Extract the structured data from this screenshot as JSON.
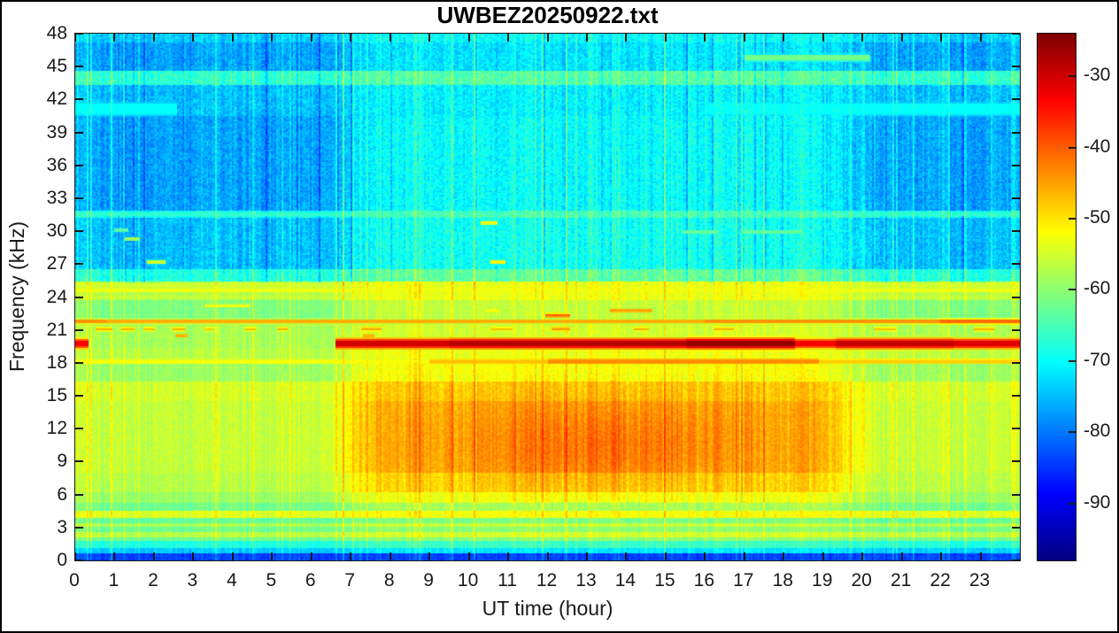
{
  "chart_data": {
    "type": "heatmap",
    "subtype": "spectrogram",
    "title": "UWBEZ20250922.txt",
    "xlabel": "UT time (hour)",
    "ylabel": "Frequency (kHz)",
    "xlim": [
      0,
      24
    ],
    "ylim": [
      0,
      48
    ],
    "x_ticks": [
      0,
      1,
      2,
      3,
      4,
      5,
      6,
      7,
      8,
      9,
      10,
      11,
      12,
      13,
      14,
      15,
      16,
      17,
      18,
      19,
      20,
      21,
      22,
      23
    ],
    "y_ticks": [
      0,
      3,
      6,
      9,
      12,
      15,
      18,
      21,
      24,
      27,
      30,
      33,
      36,
      39,
      42,
      45,
      48
    ],
    "grid_on": false,
    "legend": null,
    "colorbar": {
      "ticks": [
        -30,
        -40,
        -50,
        -60,
        -70,
        -80,
        -90
      ],
      "cmin": -98,
      "cmax": -24,
      "colormap": "jet",
      "position": "right"
    },
    "colors": {
      "background": "#ffffff",
      "title": "#000000",
      "text": "#1a1a1a",
      "axis": "#1a1a1a"
    },
    "model": {
      "grid": {
        "nx": 512,
        "ny": 300
      },
      "day": {
        "rise": [
          5.8,
          8.2
        ],
        "set": [
          18.6,
          20.6
        ]
      },
      "bands": [
        [
          0.0,
          0.6,
          -84,
          -84
        ],
        [
          0.6,
          1.1,
          -74,
          -72
        ],
        [
          1.1,
          1.7,
          -68,
          -66
        ],
        [
          1.7,
          2.1,
          -62,
          -60
        ],
        [
          2.1,
          2.5,
          -57,
          -55
        ],
        [
          2.5,
          3.0,
          -62,
          -60
        ],
        [
          3.0,
          3.4,
          -58,
          -56
        ],
        [
          3.4,
          3.85,
          -63,
          -61
        ],
        [
          3.85,
          4.45,
          -54,
          -52
        ],
        [
          4.45,
          5.3,
          -62,
          -58
        ],
        [
          5.3,
          6.3,
          -59,
          -53
        ],
        [
          6.3,
          8.0,
          -57,
          -49
        ],
        [
          8.0,
          14.5,
          -56,
          -46
        ],
        [
          14.5,
          16.3,
          -55,
          -48
        ],
        [
          16.3,
          17.9,
          -59,
          -52
        ],
        [
          17.9,
          19.3,
          -57,
          -53
        ],
        [
          19.3,
          21.4,
          -58,
          -55
        ],
        [
          21.4,
          23.6,
          -61,
          -56
        ],
        [
          23.6,
          25.4,
          -57,
          -53
        ],
        [
          25.4,
          26.6,
          -68,
          -63
        ],
        [
          26.6,
          31.2,
          -75,
          -69
        ],
        [
          31.2,
          31.9,
          -69,
          -65
        ],
        [
          31.9,
          40.5,
          -77,
          -70
        ],
        [
          40.5,
          43.4,
          -75,
          -71
        ],
        [
          43.4,
          44.6,
          -67,
          -64
        ],
        [
          44.6,
          47.2,
          -77,
          -72
        ],
        [
          47.2,
          48.0,
          -74,
          -70
        ]
      ],
      "blob": {
        "f_center": 10.5,
        "f_sigma": 4.0,
        "f_min": 5.5,
        "f_max": 16.5,
        "t_center": 13.2,
        "t_sigma": 3.6,
        "db": 4.5
      },
      "lines": [
        {
          "f": 18.15,
          "w": 0.28,
          "segs": [
            [
              0,
              9,
              -52
            ],
            [
              9,
              12,
              -47
            ],
            [
              12,
              18.9,
              -43
            ],
            [
              18.9,
              24,
              -48
            ]
          ]
        },
        {
          "f": 19.75,
          "w": 0.42,
          "segs": [
            [
              0,
              0.35,
              -33
            ],
            [
              6.6,
              9.5,
              -30
            ],
            [
              9.5,
              15.5,
              -28
            ],
            [
              15.5,
              18.3,
              -25.5
            ],
            [
              18.3,
              19.3,
              -33
            ],
            [
              19.3,
              22.3,
              -29
            ],
            [
              22.3,
              24,
              -31
            ]
          ]
        },
        {
          "f": 21.05,
          "w": 0.22,
          "segs": [
            [
              0.5,
              0.95,
              -46
            ],
            [
              1.15,
              1.5,
              -46
            ],
            [
              1.75,
              2.0,
              -47
            ],
            [
              2.5,
              2.8,
              -46
            ],
            [
              3.3,
              3.5,
              -48
            ],
            [
              4.3,
              4.6,
              -47
            ],
            [
              5.15,
              5.4,
              -46
            ],
            [
              7.25,
              7.8,
              -45
            ],
            [
              10.55,
              11.1,
              -47
            ],
            [
              12.1,
              12.55,
              -44
            ],
            [
              14.2,
              14.6,
              -46
            ],
            [
              16.2,
              16.75,
              -46
            ],
            [
              20.3,
              20.85,
              -47
            ],
            [
              22.85,
              23.35,
              -46
            ]
          ]
        },
        {
          "f": 20.45,
          "w": 0.2,
          "segs": [
            [
              2.55,
              2.85,
              -46
            ],
            [
              7.3,
              7.6,
              -46
            ]
          ]
        },
        {
          "f": 21.75,
          "w": 0.26,
          "segs": [
            [
              0,
              0.8,
              -44
            ],
            [
              0.8,
              16,
              -46
            ],
            [
              16,
              22,
              -44
            ],
            [
              22,
              24,
              -41
            ]
          ]
        },
        {
          "f": 22.3,
          "w": 0.2,
          "segs": [
            [
              11.95,
              12.55,
              -40
            ]
          ]
        },
        {
          "f": 22.75,
          "w": 0.2,
          "segs": [
            [
              10.4,
              10.8,
              -52
            ],
            [
              13.6,
              14.65,
              -45
            ]
          ]
        },
        {
          "f": 23.15,
          "w": 0.2,
          "segs": [
            [
              3.3,
              4.45,
              -52
            ]
          ]
        },
        {
          "f": 24.0,
          "w": 0.22,
          "segs": [
            [
              0,
              24,
              -56
            ]
          ]
        },
        {
          "f": 24.7,
          "w": 0.3,
          "segs": [
            [
              0,
              24,
              -53
            ]
          ]
        },
        {
          "f": 25.15,
          "w": 0.22,
          "segs": [
            [
              0,
              24,
              -55
            ]
          ]
        },
        {
          "f": 27.2,
          "w": 0.2,
          "segs": [
            [
              1.85,
              2.3,
              -55
            ],
            [
              10.55,
              10.9,
              -51
            ]
          ]
        },
        {
          "f": 29.3,
          "w": 0.18,
          "segs": [
            [
              1.25,
              1.65,
              -58
            ]
          ]
        },
        {
          "f": 30.1,
          "w": 0.18,
          "segs": [
            [
              1.0,
              1.35,
              -63
            ]
          ]
        },
        {
          "f": 30.75,
          "w": 0.2,
          "segs": [
            [
              10.3,
              10.75,
              -52
            ]
          ]
        },
        {
          "f": 29.9,
          "w": 0.22,
          "segs": [
            [
              15.4,
              16.35,
              -63
            ],
            [
              16.9,
              18.45,
              -63
            ]
          ]
        },
        {
          "f": 31.55,
          "w": 0.3,
          "segs": [
            [
              0,
              24,
              -67
            ]
          ]
        },
        {
          "f": 41.1,
          "w": 0.9,
          "segs": [
            [
              0,
              2.6,
              -70
            ],
            [
              16,
              24,
              -70
            ]
          ]
        },
        {
          "f": 45.8,
          "w": 0.4,
          "segs": [
            [
              17,
              20.2,
              -62
            ]
          ]
        }
      ],
      "noise": {
        "seed": 20250922,
        "col_sd": 1.7,
        "bright_prob": 0.1,
        "bright_min": 2,
        "bright_max": 7,
        "dark_prob": 0.07,
        "dark_min": 2,
        "dark_max": 6,
        "cell_lower": 1.4,
        "cell_upper": 2.6,
        "upper_split": 25.2,
        "upper_col_scale": 1.35,
        "lower_bright_scale": 0.75,
        "day_col_boost": 0.6
      }
    }
  }
}
